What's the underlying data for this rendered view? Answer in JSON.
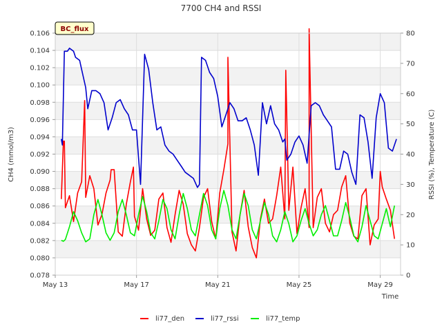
{
  "chart_data": {
    "type": "line",
    "title": "7700 CH4 and RSSI",
    "site_label": "BC_flux",
    "xlabel": "Time",
    "ylabel_left": "CH4 (mmol/m3)",
    "ylabel_right": "RSSI (%), Temperature (C)",
    "x_range_days": [
      13,
      30
    ],
    "x_ticks": [
      {
        "day": 13,
        "label": "May 13"
      },
      {
        "day": 17,
        "label": "May 17"
      },
      {
        "day": 21,
        "label": "May 21"
      },
      {
        "day": 25,
        "label": "May 25"
      },
      {
        "day": 29,
        "label": "May 29"
      }
    ],
    "ylim_left": [
      0.078,
      0.106
    ],
    "yticks_left": [
      "0.078",
      "0.080",
      "0.082",
      "0.084",
      "0.086",
      "0.088",
      "0.090",
      "0.092",
      "0.094",
      "0.096",
      "0.098",
      "0.100",
      "0.102",
      "0.104",
      "0.106"
    ],
    "ylim_right": [
      0,
      80
    ],
    "yticks_right": [
      "0",
      "10",
      "20",
      "30",
      "40",
      "50",
      "60",
      "70",
      "80"
    ],
    "legend": [
      "li77_den",
      "li77_rssi",
      "li77_temp"
    ],
    "series": [
      {
        "name": "li77_den",
        "axis": "left",
        "color": "#ff0000",
        "points": [
          [
            13.3,
            0.0868
          ],
          [
            13.4,
            0.0935
          ],
          [
            13.5,
            0.0858
          ],
          [
            13.7,
            0.0872
          ],
          [
            13.9,
            0.0842
          ],
          [
            14.1,
            0.0875
          ],
          [
            14.3,
            0.0888
          ],
          [
            14.5,
            0.087
          ],
          [
            14.7,
            0.0895
          ],
          [
            14.9,
            0.088
          ],
          [
            15.1,
            0.0838
          ],
          [
            15.3,
            0.085
          ],
          [
            15.5,
            0.0875
          ],
          [
            15.7,
            0.089
          ],
          [
            15.9,
            0.0902
          ],
          [
            16.1,
            0.083
          ],
          [
            16.3,
            0.0825
          ],
          [
            16.5,
            0.0862
          ],
          [
            16.7,
            0.0888
          ],
          [
            16.9,
            0.0848
          ],
          [
            17.1,
            0.0832
          ],
          [
            17.3,
            0.088
          ],
          [
            17.5,
            0.0845
          ],
          [
            17.7,
            0.0826
          ],
          [
            17.9,
            0.0832
          ],
          [
            18.1,
            0.0868
          ],
          [
            18.3,
            0.0875
          ],
          [
            18.5,
            0.0835
          ],
          [
            18.7,
            0.0818
          ],
          [
            18.9,
            0.085
          ],
          [
            19.1,
            0.0878
          ],
          [
            19.3,
            0.0862
          ],
          [
            19.5,
            0.0828
          ],
          [
            19.7,
            0.0815
          ],
          [
            19.9,
            0.0808
          ],
          [
            20.1,
            0.0835
          ],
          [
            20.3,
            0.087
          ],
          [
            20.5,
            0.088
          ],
          [
            20.7,
            0.0842
          ],
          [
            20.9,
            0.0822
          ],
          [
            21.1,
            0.0875
          ],
          [
            21.3,
            0.0902
          ],
          [
            21.5,
            0.0932
          ],
          [
            21.7,
            0.083
          ],
          [
            21.9,
            0.0808
          ],
          [
            22.1,
            0.085
          ],
          [
            22.3,
            0.0878
          ],
          [
            22.5,
            0.0836
          ],
          [
            22.7,
            0.0812
          ],
          [
            22.9,
            0.08
          ],
          [
            23.1,
            0.0845
          ],
          [
            23.3,
            0.0868
          ],
          [
            23.5,
            0.084
          ],
          [
            23.7,
            0.0845
          ],
          [
            23.9,
            0.0872
          ],
          [
            24.1,
            0.0905
          ],
          [
            24.3,
            0.0845
          ],
          [
            24.5,
            0.0855
          ],
          [
            24.7,
            0.0905
          ],
          [
            24.9,
            0.0828
          ],
          [
            25.1,
            0.0858
          ],
          [
            25.3,
            0.088
          ],
          [
            25.5,
            0.0835
          ],
          [
            25.7,
            0.0835
          ],
          [
            25.9,
            0.087
          ],
          [
            26.1,
            0.088
          ],
          [
            26.3,
            0.084
          ],
          [
            26.5,
            0.083
          ],
          [
            26.7,
            0.085
          ],
          [
            26.9,
            0.0855
          ],
          [
            27.1,
            0.0882
          ],
          [
            27.3,
            0.0895
          ],
          [
            27.5,
            0.084
          ],
          [
            27.7,
            0.0825
          ],
          [
            27.9,
            0.0822
          ],
          [
            28.1,
            0.0872
          ],
          [
            28.3,
            0.088
          ],
          [
            28.5,
            0.0815
          ],
          [
            28.7,
            0.0838
          ],
          [
            28.9,
            0.0845
          ],
          [
            29.1,
            0.0882
          ],
          [
            29.3,
            0.0868
          ],
          [
            29.5,
            0.0855
          ],
          [
            29.7,
            0.0822
          ]
        ],
        "spikes": [
          [
            13.45,
            0.0935
          ],
          [
            14.45,
            0.0982
          ],
          [
            15.75,
            0.0902
          ],
          [
            16.85,
            0.0905
          ],
          [
            21.5,
            0.1032
          ],
          [
            24.35,
            0.1017
          ],
          [
            25.5,
            0.1065
          ],
          [
            29.0,
            0.09
          ]
        ]
      },
      {
        "name": "li77_rssi",
        "axis": "right",
        "color": "#0000cc",
        "points": [
          [
            13.3,
            45
          ],
          [
            13.35,
            43
          ],
          [
            13.45,
            74
          ],
          [
            13.6,
            74
          ],
          [
            13.7,
            75
          ],
          [
            13.9,
            74
          ],
          [
            14.0,
            72
          ],
          [
            14.2,
            71
          ],
          [
            14.3,
            68
          ],
          [
            14.5,
            62
          ],
          [
            14.6,
            55
          ],
          [
            14.8,
            61
          ],
          [
            15.0,
            61
          ],
          [
            15.2,
            60
          ],
          [
            15.4,
            57
          ],
          [
            15.6,
            48
          ],
          [
            15.8,
            52
          ],
          [
            16.0,
            57
          ],
          [
            16.2,
            58
          ],
          [
            16.4,
            55
          ],
          [
            16.6,
            53
          ],
          [
            16.8,
            48
          ],
          [
            17.0,
            48
          ],
          [
            17.2,
            30
          ],
          [
            17.4,
            73
          ],
          [
            17.6,
            68
          ],
          [
            17.8,
            57
          ],
          [
            18.0,
            48
          ],
          [
            18.2,
            49
          ],
          [
            18.4,
            43
          ],
          [
            18.6,
            41
          ],
          [
            18.8,
            40
          ],
          [
            19.0,
            38
          ],
          [
            19.2,
            36
          ],
          [
            19.4,
            34
          ],
          [
            19.6,
            33
          ],
          [
            19.8,
            32
          ],
          [
            20.0,
            29
          ],
          [
            20.1,
            30
          ],
          [
            20.2,
            72
          ],
          [
            20.4,
            71
          ],
          [
            20.6,
            67
          ],
          [
            20.8,
            65
          ],
          [
            21.0,
            59
          ],
          [
            21.2,
            49
          ],
          [
            21.4,
            53
          ],
          [
            21.6,
            57
          ],
          [
            21.8,
            55
          ],
          [
            22.0,
            51
          ],
          [
            22.2,
            51
          ],
          [
            22.4,
            52
          ],
          [
            22.6,
            48
          ],
          [
            22.8,
            43
          ],
          [
            23.0,
            33
          ],
          [
            23.2,
            57
          ],
          [
            23.4,
            50
          ],
          [
            23.6,
            56
          ],
          [
            23.8,
            50
          ],
          [
            24.0,
            48
          ],
          [
            24.2,
            44
          ],
          [
            24.3,
            45
          ],
          [
            24.4,
            38
          ],
          [
            24.6,
            40
          ],
          [
            24.8,
            44
          ],
          [
            25.0,
            46
          ],
          [
            25.2,
            43
          ],
          [
            25.4,
            37
          ],
          [
            25.6,
            56
          ],
          [
            25.8,
            57
          ],
          [
            26.0,
            56
          ],
          [
            26.2,
            53
          ],
          [
            26.4,
            51
          ],
          [
            26.6,
            49
          ],
          [
            26.8,
            35
          ],
          [
            27.0,
            35
          ],
          [
            27.2,
            41
          ],
          [
            27.4,
            40
          ],
          [
            27.6,
            34
          ],
          [
            27.8,
            30
          ],
          [
            28.0,
            53
          ],
          [
            28.2,
            52
          ],
          [
            28.4,
            44
          ],
          [
            28.6,
            32
          ],
          [
            28.8,
            52
          ],
          [
            29.0,
            60
          ],
          [
            29.2,
            57
          ],
          [
            29.4,
            42
          ],
          [
            29.6,
            41
          ],
          [
            29.8,
            45
          ]
        ]
      },
      {
        "name": "li77_temp",
        "axis": "right",
        "color": "#00ee00",
        "points": [
          [
            13.3,
            11.5
          ],
          [
            13.4,
            11.2
          ],
          [
            13.5,
            11.8
          ],
          [
            13.7,
            16
          ],
          [
            13.9,
            21
          ],
          [
            14.1,
            18
          ],
          [
            14.3,
            14
          ],
          [
            14.5,
            11
          ],
          [
            14.7,
            12
          ],
          [
            14.9,
            20
          ],
          [
            15.1,
            25
          ],
          [
            15.3,
            20
          ],
          [
            15.5,
            14
          ],
          [
            15.7,
            11.5
          ],
          [
            15.9,
            14
          ],
          [
            16.1,
            21
          ],
          [
            16.3,
            25
          ],
          [
            16.5,
            20
          ],
          [
            16.7,
            14
          ],
          [
            16.9,
            13
          ],
          [
            17.1,
            20
          ],
          [
            17.3,
            26
          ],
          [
            17.5,
            21
          ],
          [
            17.7,
            14
          ],
          [
            17.9,
            12
          ],
          [
            18.1,
            18
          ],
          [
            18.3,
            25
          ],
          [
            18.5,
            22
          ],
          [
            18.7,
            15
          ],
          [
            18.9,
            12
          ],
          [
            19.1,
            20
          ],
          [
            19.3,
            27
          ],
          [
            19.5,
            22
          ],
          [
            19.7,
            15
          ],
          [
            19.9,
            13
          ],
          [
            20.1,
            20
          ],
          [
            20.3,
            27
          ],
          [
            20.5,
            23
          ],
          [
            20.7,
            15
          ],
          [
            20.9,
            12
          ],
          [
            21.1,
            22
          ],
          [
            21.3,
            28
          ],
          [
            21.5,
            23
          ],
          [
            21.7,
            15
          ],
          [
            21.9,
            12
          ],
          [
            22.1,
            20
          ],
          [
            22.3,
            27
          ],
          [
            22.5,
            23
          ],
          [
            22.7,
            15
          ],
          [
            22.9,
            12
          ],
          [
            23.1,
            18
          ],
          [
            23.3,
            24
          ],
          [
            23.5,
            20
          ],
          [
            23.7,
            13
          ],
          [
            23.9,
            11
          ],
          [
            24.1,
            15
          ],
          [
            24.3,
            21
          ],
          [
            24.5,
            17
          ],
          [
            24.7,
            11
          ],
          [
            24.9,
            13
          ],
          [
            25.1,
            18
          ],
          [
            25.3,
            22
          ],
          [
            25.5,
            17
          ],
          [
            25.7,
            13
          ],
          [
            25.9,
            15
          ],
          [
            26.1,
            20
          ],
          [
            26.3,
            23
          ],
          [
            26.5,
            18
          ],
          [
            26.7,
            13
          ],
          [
            26.9,
            13
          ],
          [
            27.1,
            18
          ],
          [
            27.3,
            24
          ],
          [
            27.5,
            19
          ],
          [
            27.7,
            13
          ],
          [
            27.9,
            11
          ],
          [
            28.1,
            16
          ],
          [
            28.3,
            23
          ],
          [
            28.5,
            18
          ],
          [
            28.7,
            13
          ],
          [
            28.9,
            12
          ],
          [
            29.1,
            17
          ],
          [
            29.3,
            22
          ],
          [
            29.5,
            16
          ],
          [
            29.7,
            23
          ]
        ]
      }
    ]
  }
}
